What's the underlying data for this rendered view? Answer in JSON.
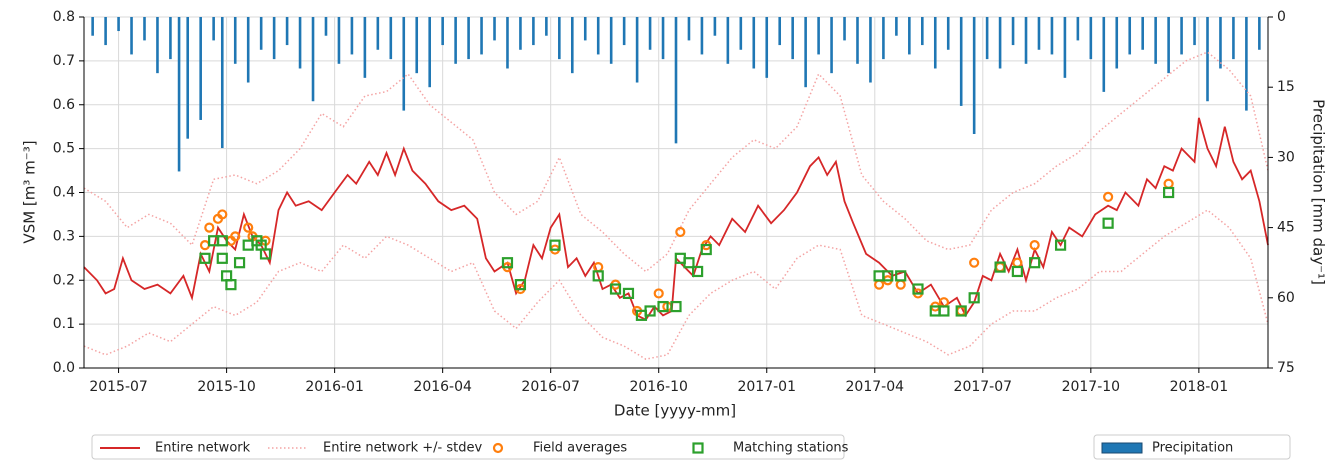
{
  "chart_data": {
    "type": "line",
    "xlabel": "Date [yyyy-mm]",
    "ylabel": "VSM [m³ m⁻³]",
    "y2label": "Precipitation [mm day⁻¹]",
    "xlim": [
      2015.42,
      2018.16
    ],
    "xticks": [
      {
        "value": 2015.5,
        "label": "2015-07"
      },
      {
        "value": 2015.75,
        "label": "2015-10"
      },
      {
        "value": 2016.0,
        "label": "2016-01"
      },
      {
        "value": 2016.25,
        "label": "2016-04"
      },
      {
        "value": 2016.5,
        "label": "2016-07"
      },
      {
        "value": 2016.75,
        "label": "2016-10"
      },
      {
        "value": 2017.0,
        "label": "2017-01"
      },
      {
        "value": 2017.25,
        "label": "2017-04"
      },
      {
        "value": 2017.5,
        "label": "2017-07"
      },
      {
        "value": 2017.75,
        "label": "2017-10"
      },
      {
        "value": 2018.0,
        "label": "2018-01"
      }
    ],
    "ylim": [
      0,
      0.8
    ],
    "yticks": [
      {
        "value": 0,
        "label": "0.0"
      },
      0.1,
      0.2,
      0.3,
      0.4,
      0.5,
      0.6,
      0.7,
      0.8
    ],
    "y2lim": [
      75,
      0
    ],
    "y2ticks": [
      0,
      15,
      30,
      45,
      60,
      75
    ],
    "grid": true,
    "legend": "below",
    "series": [
      {
        "name": "Entire network",
        "type": "line",
        "color": "#d62728",
        "x": [
          2015.42,
          2015.45,
          2015.47,
          2015.49,
          2015.51,
          2015.53,
          2015.56,
          2015.59,
          2015.62,
          2015.65,
          2015.67,
          2015.69,
          2015.71,
          2015.73,
          2015.75,
          2015.77,
          2015.79,
          2015.81,
          2015.83,
          2015.85,
          2015.87,
          2015.89,
          2015.91,
          2015.94,
          2015.97,
          2016.0,
          2016.03,
          2016.05,
          2016.08,
          2016.1,
          2016.12,
          2016.14,
          2016.16,
          2016.18,
          2016.21,
          2016.24,
          2016.27,
          2016.3,
          2016.33,
          2016.35,
          2016.37,
          2016.4,
          2016.42,
          2016.44,
          2016.46,
          2016.48,
          2016.5,
          2016.52,
          2016.54,
          2016.56,
          2016.58,
          2016.6,
          2016.62,
          2016.64,
          2016.66,
          2016.68,
          2016.7,
          2016.72,
          2016.74,
          2016.76,
          2016.78,
          2016.79,
          2016.81,
          2016.83,
          2016.85,
          2016.87,
          2016.89,
          2016.92,
          2016.95,
          2016.98,
          2017.01,
          2017.04,
          2017.07,
          2017.1,
          2017.12,
          2017.14,
          2017.16,
          2017.18,
          2017.2,
          2017.23,
          2017.26,
          2017.29,
          2017.32,
          2017.35,
          2017.38,
          2017.41,
          2017.44,
          2017.46,
          2017.48,
          2017.5,
          2017.52,
          2017.54,
          2017.56,
          2017.58,
          2017.6,
          2017.62,
          2017.64,
          2017.66,
          2017.68,
          2017.7,
          2017.73,
          2017.76,
          2017.79,
          2017.81,
          2017.83,
          2017.86,
          2017.88,
          2017.9,
          2017.92,
          2017.94,
          2017.96,
          2017.99,
          2018.0,
          2018.02,
          2018.04,
          2018.06,
          2018.08,
          2018.1,
          2018.12,
          2018.14,
          2018.16
        ],
        "values": [
          0.23,
          0.2,
          0.17,
          0.18,
          0.25,
          0.2,
          0.18,
          0.19,
          0.17,
          0.21,
          0.16,
          0.26,
          0.22,
          0.32,
          0.29,
          0.27,
          0.35,
          0.3,
          0.28,
          0.24,
          0.36,
          0.4,
          0.37,
          0.38,
          0.36,
          0.4,
          0.44,
          0.42,
          0.47,
          0.44,
          0.49,
          0.44,
          0.5,
          0.45,
          0.42,
          0.38,
          0.36,
          0.37,
          0.34,
          0.25,
          0.22,
          0.24,
          0.17,
          0.2,
          0.28,
          0.25,
          0.32,
          0.35,
          0.23,
          0.25,
          0.21,
          0.24,
          0.18,
          0.19,
          0.16,
          0.17,
          0.12,
          0.11,
          0.14,
          0.12,
          0.13,
          0.25,
          0.23,
          0.21,
          0.27,
          0.3,
          0.28,
          0.34,
          0.31,
          0.37,
          0.33,
          0.36,
          0.4,
          0.46,
          0.48,
          0.44,
          0.47,
          0.38,
          0.33,
          0.26,
          0.24,
          0.21,
          0.22,
          0.17,
          0.19,
          0.14,
          0.16,
          0.12,
          0.15,
          0.21,
          0.2,
          0.26,
          0.22,
          0.27,
          0.2,
          0.27,
          0.23,
          0.31,
          0.28,
          0.32,
          0.3,
          0.35,
          0.37,
          0.36,
          0.4,
          0.37,
          0.43,
          0.41,
          0.46,
          0.45,
          0.5,
          0.47,
          0.57,
          0.5,
          0.46,
          0.55,
          0.47,
          0.43,
          0.45,
          0.38,
          0.28
        ]
      },
      {
        "name": "Entire network +/- stdev",
        "type": "band-lines",
        "color": "#f4a3a3",
        "line_style": "dotted",
        "x": [
          2015.42,
          2015.47,
          2015.52,
          2015.57,
          2015.62,
          2015.67,
          2015.72,
          2015.77,
          2015.82,
          2015.87,
          2015.92,
          2015.97,
          2016.02,
          2016.07,
          2016.12,
          2016.17,
          2016.22,
          2016.27,
          2016.32,
          2016.37,
          2016.42,
          2016.47,
          2016.52,
          2016.57,
          2016.62,
          2016.67,
          2016.72,
          2016.77,
          2016.82,
          2016.87,
          2016.92,
          2016.97,
          2017.02,
          2017.07,
          2017.12,
          2017.17,
          2017.22,
          2017.27,
          2017.32,
          2017.37,
          2017.42,
          2017.47,
          2017.52,
          2017.57,
          2017.62,
          2017.67,
          2017.72,
          2017.77,
          2017.82,
          2017.87,
          2017.92,
          2017.97,
          2018.02,
          2018.07,
          2018.12,
          2018.16
        ],
        "upper": [
          0.41,
          0.38,
          0.32,
          0.35,
          0.33,
          0.28,
          0.43,
          0.44,
          0.42,
          0.45,
          0.5,
          0.58,
          0.55,
          0.62,
          0.63,
          0.67,
          0.6,
          0.56,
          0.52,
          0.4,
          0.35,
          0.38,
          0.48,
          0.35,
          0.31,
          0.26,
          0.22,
          0.26,
          0.36,
          0.42,
          0.48,
          0.52,
          0.5,
          0.55,
          0.67,
          0.62,
          0.44,
          0.38,
          0.34,
          0.29,
          0.27,
          0.28,
          0.36,
          0.4,
          0.42,
          0.46,
          0.49,
          0.54,
          0.58,
          0.62,
          0.66,
          0.7,
          0.72,
          0.68,
          0.62,
          0.45
        ],
        "lower": [
          0.05,
          0.03,
          0.05,
          0.08,
          0.06,
          0.1,
          0.14,
          0.12,
          0.15,
          0.22,
          0.24,
          0.22,
          0.28,
          0.25,
          0.3,
          0.28,
          0.25,
          0.22,
          0.24,
          0.13,
          0.09,
          0.15,
          0.2,
          0.12,
          0.07,
          0.05,
          0.02,
          0.03,
          0.12,
          0.17,
          0.2,
          0.22,
          0.18,
          0.25,
          0.28,
          0.27,
          0.12,
          0.1,
          0.08,
          0.06,
          0.03,
          0.05,
          0.1,
          0.13,
          0.13,
          0.16,
          0.18,
          0.22,
          0.22,
          0.26,
          0.3,
          0.33,
          0.36,
          0.32,
          0.25,
          0.1
        ]
      },
      {
        "name": "Field averages",
        "type": "scatter",
        "marker": "circle",
        "color": "#ff7f0e",
        "x": [
          2015.7,
          2015.71,
          2015.73,
          2015.74,
          2015.76,
          2015.77,
          2015.8,
          2015.81,
          2015.84,
          2016.4,
          2016.43,
          2016.51,
          2016.61,
          2016.65,
          2016.7,
          2016.75,
          2016.77,
          2016.8,
          2016.86,
          2017.26,
          2017.28,
          2017.31,
          2017.35,
          2017.39,
          2017.41,
          2017.45,
          2017.48,
          2017.54,
          2017.58,
          2017.62,
          2017.79,
          2017.93
        ],
        "values": [
          0.28,
          0.32,
          0.34,
          0.35,
          0.29,
          0.3,
          0.32,
          0.3,
          0.29,
          0.23,
          0.18,
          0.27,
          0.23,
          0.19,
          0.13,
          0.17,
          0.14,
          0.31,
          0.28,
          0.19,
          0.2,
          0.19,
          0.17,
          0.14,
          0.15,
          0.13,
          0.24,
          0.23,
          0.24,
          0.28,
          0.39,
          0.42
        ]
      },
      {
        "name": "Matching stations",
        "type": "scatter",
        "marker": "square",
        "color": "#2ca02c",
        "x": [
          2015.7,
          2015.72,
          2015.74,
          2015.74,
          2015.75,
          2015.76,
          2015.78,
          2015.8,
          2015.82,
          2015.83,
          2015.84,
          2016.4,
          2016.43,
          2016.51,
          2016.61,
          2016.65,
          2016.68,
          2016.71,
          2016.73,
          2016.76,
          2016.79,
          2016.8,
          2016.82,
          2016.84,
          2016.86,
          2017.26,
          2017.28,
          2017.31,
          2017.35,
          2017.39,
          2017.41,
          2017.45,
          2017.48,
          2017.54,
          2017.58,
          2017.62,
          2017.68,
          2017.79,
          2017.93
        ],
        "values": [
          0.25,
          0.29,
          0.29,
          0.25,
          0.21,
          0.19,
          0.24,
          0.28,
          0.29,
          0.28,
          0.26,
          0.24,
          0.19,
          0.28,
          0.21,
          0.18,
          0.17,
          0.12,
          0.13,
          0.14,
          0.14,
          0.25,
          0.24,
          0.22,
          0.27,
          0.21,
          0.21,
          0.21,
          0.18,
          0.13,
          0.13,
          0.13,
          0.16,
          0.23,
          0.22,
          0.24,
          0.28,
          0.33,
          0.4
        ]
      },
      {
        "name": "Precipitation",
        "type": "bar",
        "axis": "y2",
        "color": "#1f77b4",
        "x": [
          2015.44,
          2015.47,
          2015.5,
          2015.53,
          2015.56,
          2015.59,
          2015.62,
          2015.64,
          2015.66,
          2015.69,
          2015.72,
          2015.74,
          2015.77,
          2015.8,
          2015.83,
          2015.86,
          2015.89,
          2015.92,
          2015.95,
          2015.98,
          2016.01,
          2016.04,
          2016.07,
          2016.1,
          2016.13,
          2016.16,
          2016.19,
          2016.22,
          2016.25,
          2016.28,
          2016.31,
          2016.34,
          2016.37,
          2016.4,
          2016.43,
          2016.46,
          2016.49,
          2016.52,
          2016.55,
          2016.58,
          2016.61,
          2016.64,
          2016.67,
          2016.7,
          2016.73,
          2016.76,
          2016.79,
          2016.82,
          2016.85,
          2016.88,
          2016.91,
          2016.94,
          2016.97,
          2017.0,
          2017.03,
          2017.06,
          2017.09,
          2017.12,
          2017.15,
          2017.18,
          2017.21,
          2017.24,
          2017.27,
          2017.3,
          2017.33,
          2017.36,
          2017.39,
          2017.42,
          2017.45,
          2017.48,
          2017.51,
          2017.54,
          2017.57,
          2017.6,
          2017.63,
          2017.66,
          2017.69,
          2017.72,
          2017.75,
          2017.78,
          2017.81,
          2017.84,
          2017.87,
          2017.9,
          2017.93,
          2017.96,
          2017.99,
          2018.02,
          2018.05,
          2018.08,
          2018.11,
          2018.14
        ],
        "values": [
          4,
          6,
          3,
          8,
          5,
          12,
          9,
          33,
          26,
          22,
          5,
          28,
          10,
          14,
          7,
          9,
          6,
          11,
          18,
          4,
          10,
          8,
          13,
          7,
          9,
          20,
          12,
          15,
          6,
          10,
          9,
          8,
          5,
          11,
          7,
          6,
          4,
          9,
          12,
          5,
          8,
          10,
          6,
          14,
          7,
          9,
          27,
          5,
          8,
          4,
          10,
          7,
          11,
          13,
          6,
          9,
          15,
          8,
          12,
          5,
          10,
          14,
          9,
          4,
          8,
          6,
          11,
          7,
          19,
          25,
          9,
          11,
          6,
          10,
          7,
          8,
          13,
          5,
          9,
          16,
          11,
          8,
          7,
          10,
          12,
          8,
          6,
          18,
          11,
          9,
          20,
          7
        ]
      }
    ]
  }
}
